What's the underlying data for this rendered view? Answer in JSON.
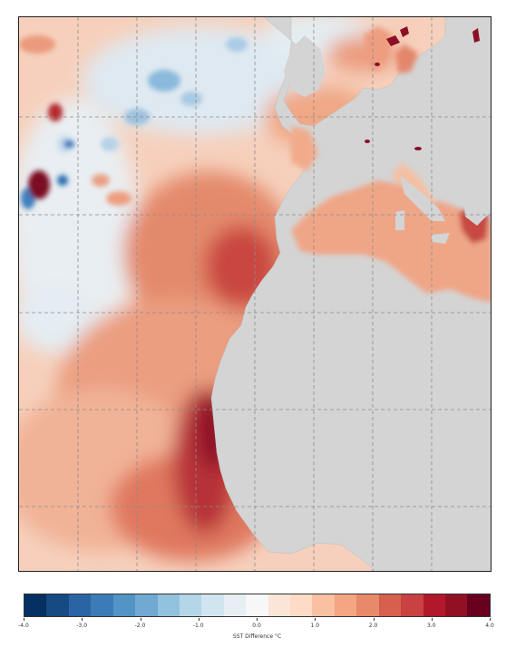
{
  "map": {
    "land_color": "#d4d4d4",
    "graticule": {
      "lon_lines": 8,
      "lat_lines": 6,
      "style": "dashed",
      "color": "#8c8c8c"
    }
  },
  "colorbar": {
    "label": "SST Difference °C",
    "min": -4.0,
    "max": 4.0,
    "tick_labels": [
      "-4.0",
      "-3.0",
      "-2.0",
      "-1.0",
      "0.0",
      "1.0",
      "2.0",
      "3.0",
      "4.0"
    ],
    "colors": [
      "#053061",
      "#154a82",
      "#2a64a5",
      "#3b7cb7",
      "#5294c5",
      "#71a9d2",
      "#92c3de",
      "#b3d6e8",
      "#d1e5f0",
      "#e6eff4",
      "#f7f7f7",
      "#fbe5d8",
      "#fddbc7",
      "#f9c0a2",
      "#f4a582",
      "#e68a6a",
      "#d6604d",
      "#c94140",
      "#b2182b",
      "#921024",
      "#67001f"
    ]
  },
  "anomaly_palette": {
    "cold_strong": "#2166ac",
    "cold": "#6ea7d1",
    "cool": "#c6dcec",
    "neutral": "#f4ece8",
    "warm_light": "#f7cdb6",
    "warm": "#ef9f7f",
    "hot": "#d6604d",
    "very_hot": "#a91d2c",
    "extreme": "#67001f"
  }
}
